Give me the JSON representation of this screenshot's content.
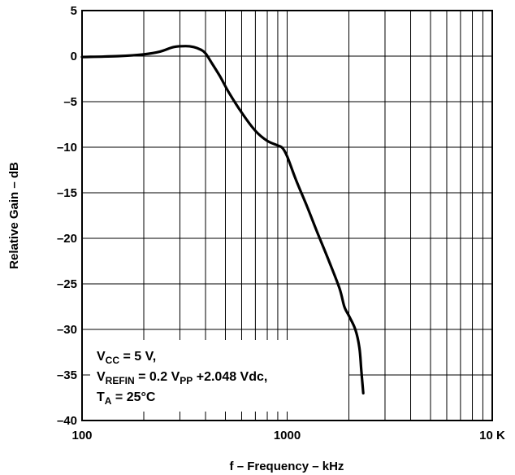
{
  "chart_data": {
    "type": "line",
    "xscale": "log",
    "xlim": [
      100,
      10000
    ],
    "ylim": [
      -40,
      5
    ],
    "grid": true,
    "xlabel": "f – Frequency – kHz",
    "ylabel": "Relative Gain – dB",
    "x_tick_labels": [
      "100",
      "1000",
      "10 K"
    ],
    "x_tick_values": [
      100,
      1000,
      10000
    ],
    "y_ticks": [
      "5",
      "0",
      "–5",
      "–10",
      "–15",
      "–20",
      "–25",
      "–30",
      "–35",
      "–40"
    ],
    "y_tick_values": [
      5,
      0,
      -5,
      -10,
      -15,
      -20,
      -25,
      -30,
      -35,
      -40
    ],
    "series": [
      {
        "x": [
          100,
          150,
          200,
          240,
          280,
          320,
          350,
          380,
          400,
          430,
          470,
          520,
          600,
          700,
          800,
          900,
          950,
          1000,
          1100,
          1250,
          1400,
          1600,
          1800,
          1900,
          2000,
          2150,
          2250,
          2300,
          2350
        ],
        "y": [
          -0.1,
          0,
          0.2,
          0.5,
          1.0,
          1.1,
          1.0,
          0.7,
          0.3,
          -0.8,
          -2.2,
          -4.0,
          -6.2,
          -8.2,
          -9.3,
          -9.8,
          -10.1,
          -11.0,
          -13.5,
          -16.5,
          -19.3,
          -22.5,
          -25.5,
          -27.5,
          -28.5,
          -30.0,
          -32.0,
          -34.5,
          -37.0
        ]
      }
    ],
    "annotation": {
      "line1": {
        "main": "V",
        "sub": "CC",
        "rest": " = 5 V,"
      },
      "line2": {
        "main": "V",
        "sub": "REFIN",
        "rest": " = 0.2 V",
        "sub2": "PP",
        "rest2": " +2.048 Vdc,"
      },
      "line3": {
        "main": "T",
        "sub": "A",
        "rest": " = 25°C"
      }
    }
  }
}
